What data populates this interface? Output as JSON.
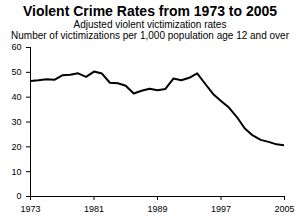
{
  "chart_data": {
    "type": "line",
    "title": "Violent Crime Rates from 1973 to 2005",
    "subtitle": [
      "Adjusted violent victimization rates",
      "Number of victimizations per 1,000 population age 12 and over"
    ],
    "x": [
      1973,
      1974,
      1975,
      1976,
      1977,
      1978,
      1979,
      1980,
      1981,
      1982,
      1983,
      1984,
      1985,
      1986,
      1987,
      1988,
      1989,
      1990,
      1991,
      1992,
      1993,
      1994,
      1995,
      1996,
      1997,
      1998,
      1999,
      2000,
      2001,
      2002,
      2003,
      2004,
      2005
    ],
    "series": [
      {
        "name": "Adjusted violent victimization rates",
        "color": "#000000",
        "values": [
          46.5,
          46.8,
          47.2,
          47.0,
          48.8,
          49.0,
          49.6,
          48.2,
          50.3,
          49.5,
          45.8,
          45.6,
          44.6,
          41.5,
          42.6,
          43.4,
          42.8,
          43.3,
          47.5,
          46.8,
          47.8,
          49.6,
          45.4,
          41.3,
          38.5,
          35.8,
          32.0,
          27.4,
          24.6,
          22.8,
          22.0,
          21.0,
          20.6
        ]
      }
    ],
    "xlim": [
      1973,
      2005
    ],
    "xticks": [
      1973,
      1981,
      1989,
      1997,
      2005
    ],
    "ylim": [
      0,
      60
    ],
    "yticks": [
      0,
      10,
      20,
      30,
      40,
      50,
      60
    ],
    "grid": false
  }
}
